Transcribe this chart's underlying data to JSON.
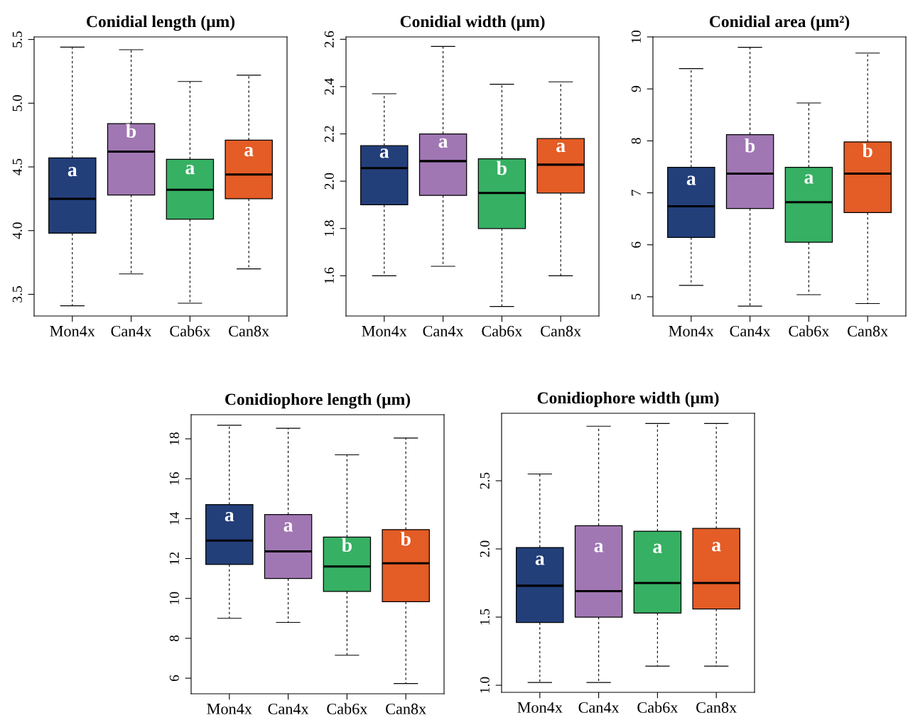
{
  "chart_data": [
    {
      "type": "box",
      "title": "Conidial length (μm)",
      "categories": [
        "Mon4x",
        "Can4x",
        "Cab6x",
        "Can8x"
      ],
      "colors": [
        "#233f7a",
        "#a077b3",
        "#36b063",
        "#e45c26"
      ],
      "ylim": [
        3.33,
        5.52
      ],
      "yticks": [
        3.5,
        {
          "value": 4,
          "label": "4.0"
        },
        4.5,
        {
          "value": 5,
          "label": "5.0"
        },
        5.5
      ],
      "boxes": [
        {
          "low": 3.41,
          "q1": 3.98,
          "median": 4.25,
          "q3": 4.57,
          "high": 5.44
        },
        {
          "low": 3.66,
          "q1": 4.28,
          "median": 4.62,
          "q3": 4.84,
          "high": 5.42
        },
        {
          "low": 3.43,
          "q1": 4.09,
          "median": 4.32,
          "q3": 4.56,
          "high": 5.17
        },
        {
          "low": 3.7,
          "q1": 4.25,
          "median": 4.44,
          "q3": 4.71,
          "high": 5.22
        }
      ],
      "annotations": [
        "a",
        "b",
        "a",
        "a"
      ]
    },
    {
      "type": "box",
      "title": "Conidial width (μm)",
      "categories": [
        "Mon4x",
        "Can4x",
        "Cab6x",
        "Can8x"
      ],
      "colors": [
        "#233f7a",
        "#a077b3",
        "#36b063",
        "#e45c26"
      ],
      "ylim": [
        1.43,
        2.61
      ],
      "yticks": [
        1.6,
        1.8,
        {
          "value": 2,
          "label": "2.0"
        },
        2.2,
        2.4,
        2.6
      ],
      "boxes": [
        {
          "low": 1.6,
          "q1": 1.9,
          "median": 2.055,
          "q3": 2.15,
          "high": 2.37
        },
        {
          "low": 1.64,
          "q1": 1.94,
          "median": 2.085,
          "q3": 2.2,
          "high": 2.57
        },
        {
          "low": 1.47,
          "q1": 1.8,
          "median": 1.95,
          "q3": 2.095,
          "high": 2.41
        },
        {
          "low": 1.6,
          "q1": 1.95,
          "median": 2.07,
          "q3": 2.18,
          "high": 2.42
        }
      ],
      "annotations": [
        "a",
        "a",
        "b",
        "a"
      ]
    },
    {
      "type": "box",
      "title": "Conidial area (μm²)",
      "categories": [
        "Mon4x",
        "Can4x",
        "Cab6x",
        "Can8x"
      ],
      "colors": [
        "#233f7a",
        "#a077b3",
        "#36b063",
        "#e45c26"
      ],
      "ylim": [
        4.63,
        10.0
      ],
      "yticks": [
        5,
        6,
        7,
        8,
        9,
        10
      ],
      "boxes": [
        {
          "low": 5.22,
          "q1": 6.14,
          "median": 6.74,
          "q3": 7.49,
          "high": 9.39
        },
        {
          "low": 4.82,
          "q1": 6.7,
          "median": 7.37,
          "q3": 8.12,
          "high": 9.8
        },
        {
          "low": 5.04,
          "q1": 6.05,
          "median": 6.82,
          "q3": 7.49,
          "high": 8.73
        },
        {
          "low": 4.87,
          "q1": 6.62,
          "median": 7.37,
          "q3": 7.98,
          "high": 9.69
        }
      ],
      "annotations": [
        "a",
        "b",
        "a",
        "b"
      ]
    },
    {
      "type": "box",
      "title": "Conidiophore length (μm)",
      "categories": [
        "Mon4x",
        "Can4x",
        "Cab6x",
        "Can8x"
      ],
      "colors": [
        "#233f7a",
        "#a077b3",
        "#36b063",
        "#e45c26"
      ],
      "ylim": [
        5.22,
        19.21
      ],
      "yticks": [
        6,
        8,
        10,
        12,
        14,
        16,
        18
      ],
      "boxes": [
        {
          "low": 9.0,
          "q1": 11.7,
          "median": 12.9,
          "q3": 14.7,
          "high": 18.68
        },
        {
          "low": 8.8,
          "q1": 11.0,
          "median": 12.36,
          "q3": 14.2,
          "high": 18.53
        },
        {
          "low": 7.15,
          "q1": 10.35,
          "median": 11.6,
          "q3": 13.07,
          "high": 17.2
        },
        {
          "low": 5.73,
          "q1": 9.83,
          "median": 11.76,
          "q3": 13.45,
          "high": 18.04
        }
      ],
      "annotations": [
        "a",
        "a",
        "b",
        "b"
      ]
    },
    {
      "type": "box",
      "title": "Conidiophore width (μm)",
      "categories": [
        "Mon4x",
        "Can4x",
        "Cab6x",
        "Can8x"
      ],
      "colors": [
        "#233f7a",
        "#a077b3",
        "#36b063",
        "#e45c26"
      ],
      "ylim": [
        0.948,
        2.995
      ],
      "yticks": [
        {
          "value": 1,
          "label": "1.0"
        },
        1.5,
        {
          "value": 2,
          "label": "2.0"
        },
        2.5
      ],
      "boxes": [
        {
          "low": 1.02,
          "q1": 1.46,
          "median": 1.73,
          "q3": 2.01,
          "high": 2.55
        },
        {
          "low": 1.02,
          "q1": 1.5,
          "median": 1.69,
          "q3": 2.17,
          "high": 2.9
        },
        {
          "low": 1.14,
          "q1": 1.53,
          "median": 1.75,
          "q3": 2.13,
          "high": 2.92
        },
        {
          "low": 1.14,
          "q1": 1.56,
          "median": 1.75,
          "q3": 2.15,
          "high": 2.92
        }
      ],
      "annotations": [
        "a",
        "a",
        "a",
        "a"
      ]
    }
  ]
}
